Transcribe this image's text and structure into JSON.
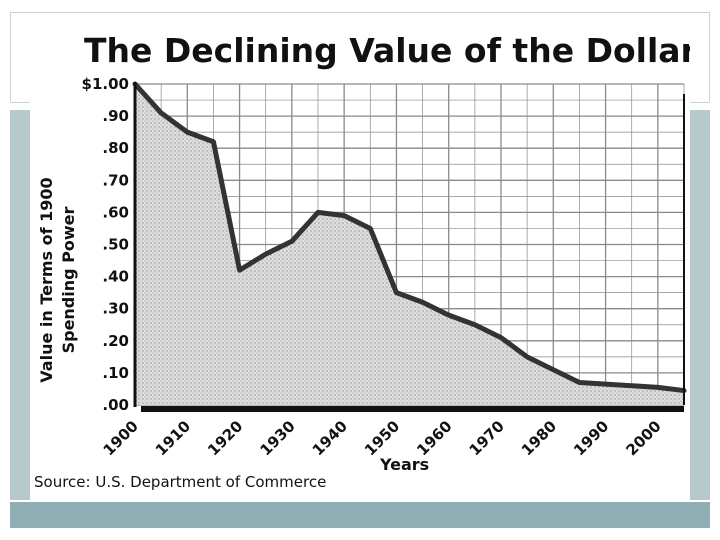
{
  "chart_data": {
    "type": "area",
    "title": "The Declining Value of the Dollar",
    "xlabel": "Years",
    "ylabel_line1": "Value in Terms of 1900",
    "ylabel_line2": "Spending Power",
    "source": "Source: U.S. Department of Commerce",
    "x_ticks": [
      "1900",
      "1910",
      "1920",
      "1930",
      "1940",
      "1950",
      "1960",
      "1970",
      "1980",
      "1990",
      "2000"
    ],
    "y_ticks": [
      "$1.00",
      ".90",
      ".80",
      ".70",
      ".60",
      ".50",
      ".40",
      ".30",
      ".20",
      ".10",
      ".00"
    ],
    "xlim": [
      1900,
      2005
    ],
    "ylim": [
      0,
      1.0
    ],
    "grid": true,
    "series": [
      {
        "x": [
          1900,
          1905,
          1910,
          1915,
          1920,
          1925,
          1930,
          1935,
          1940,
          1945,
          1950,
          1955,
          1960,
          1965,
          1970,
          1975,
          1980,
          1985,
          1990,
          1995,
          2000,
          2005
        ],
        "y": [
          1.0,
          0.91,
          0.85,
          0.82,
          0.42,
          0.47,
          0.51,
          0.6,
          0.59,
          0.55,
          0.35,
          0.32,
          0.28,
          0.25,
          0.21,
          0.15,
          0.11,
          0.07,
          0.065,
          0.06,
          0.055,
          0.045
        ]
      }
    ],
    "colors": {
      "line": "#333333",
      "fill": "#d4d4d4",
      "grid": "#8a8a8a",
      "axis": "#111111"
    }
  }
}
